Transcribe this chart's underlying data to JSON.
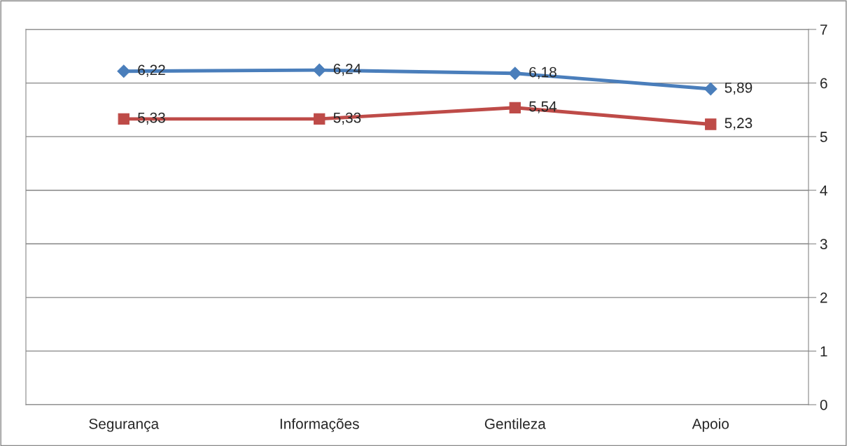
{
  "chart_data": {
    "type": "line",
    "categories": [
      "Segurança",
      "Informações",
      "Gentileza",
      "Apoio"
    ],
    "series": [
      {
        "color": "#4a7ebb",
        "marker": "diamond",
        "values": [
          6.22,
          6.24,
          6.18,
          5.89
        ],
        "value_labels": [
          "6,22",
          "6,24",
          "6,18",
          "5,89"
        ]
      },
      {
        "color": "#be4b48",
        "marker": "square",
        "values": [
          5.33,
          5.33,
          5.54,
          5.23
        ],
        "value_labels": [
          "5,33",
          "5,33",
          "5,54",
          "5,23"
        ]
      }
    ],
    "ylim": [
      0,
      7
    ],
    "yticks": [
      0,
      1,
      2,
      3,
      4,
      5,
      6,
      7
    ],
    "grid": "y",
    "legend": false
  }
}
